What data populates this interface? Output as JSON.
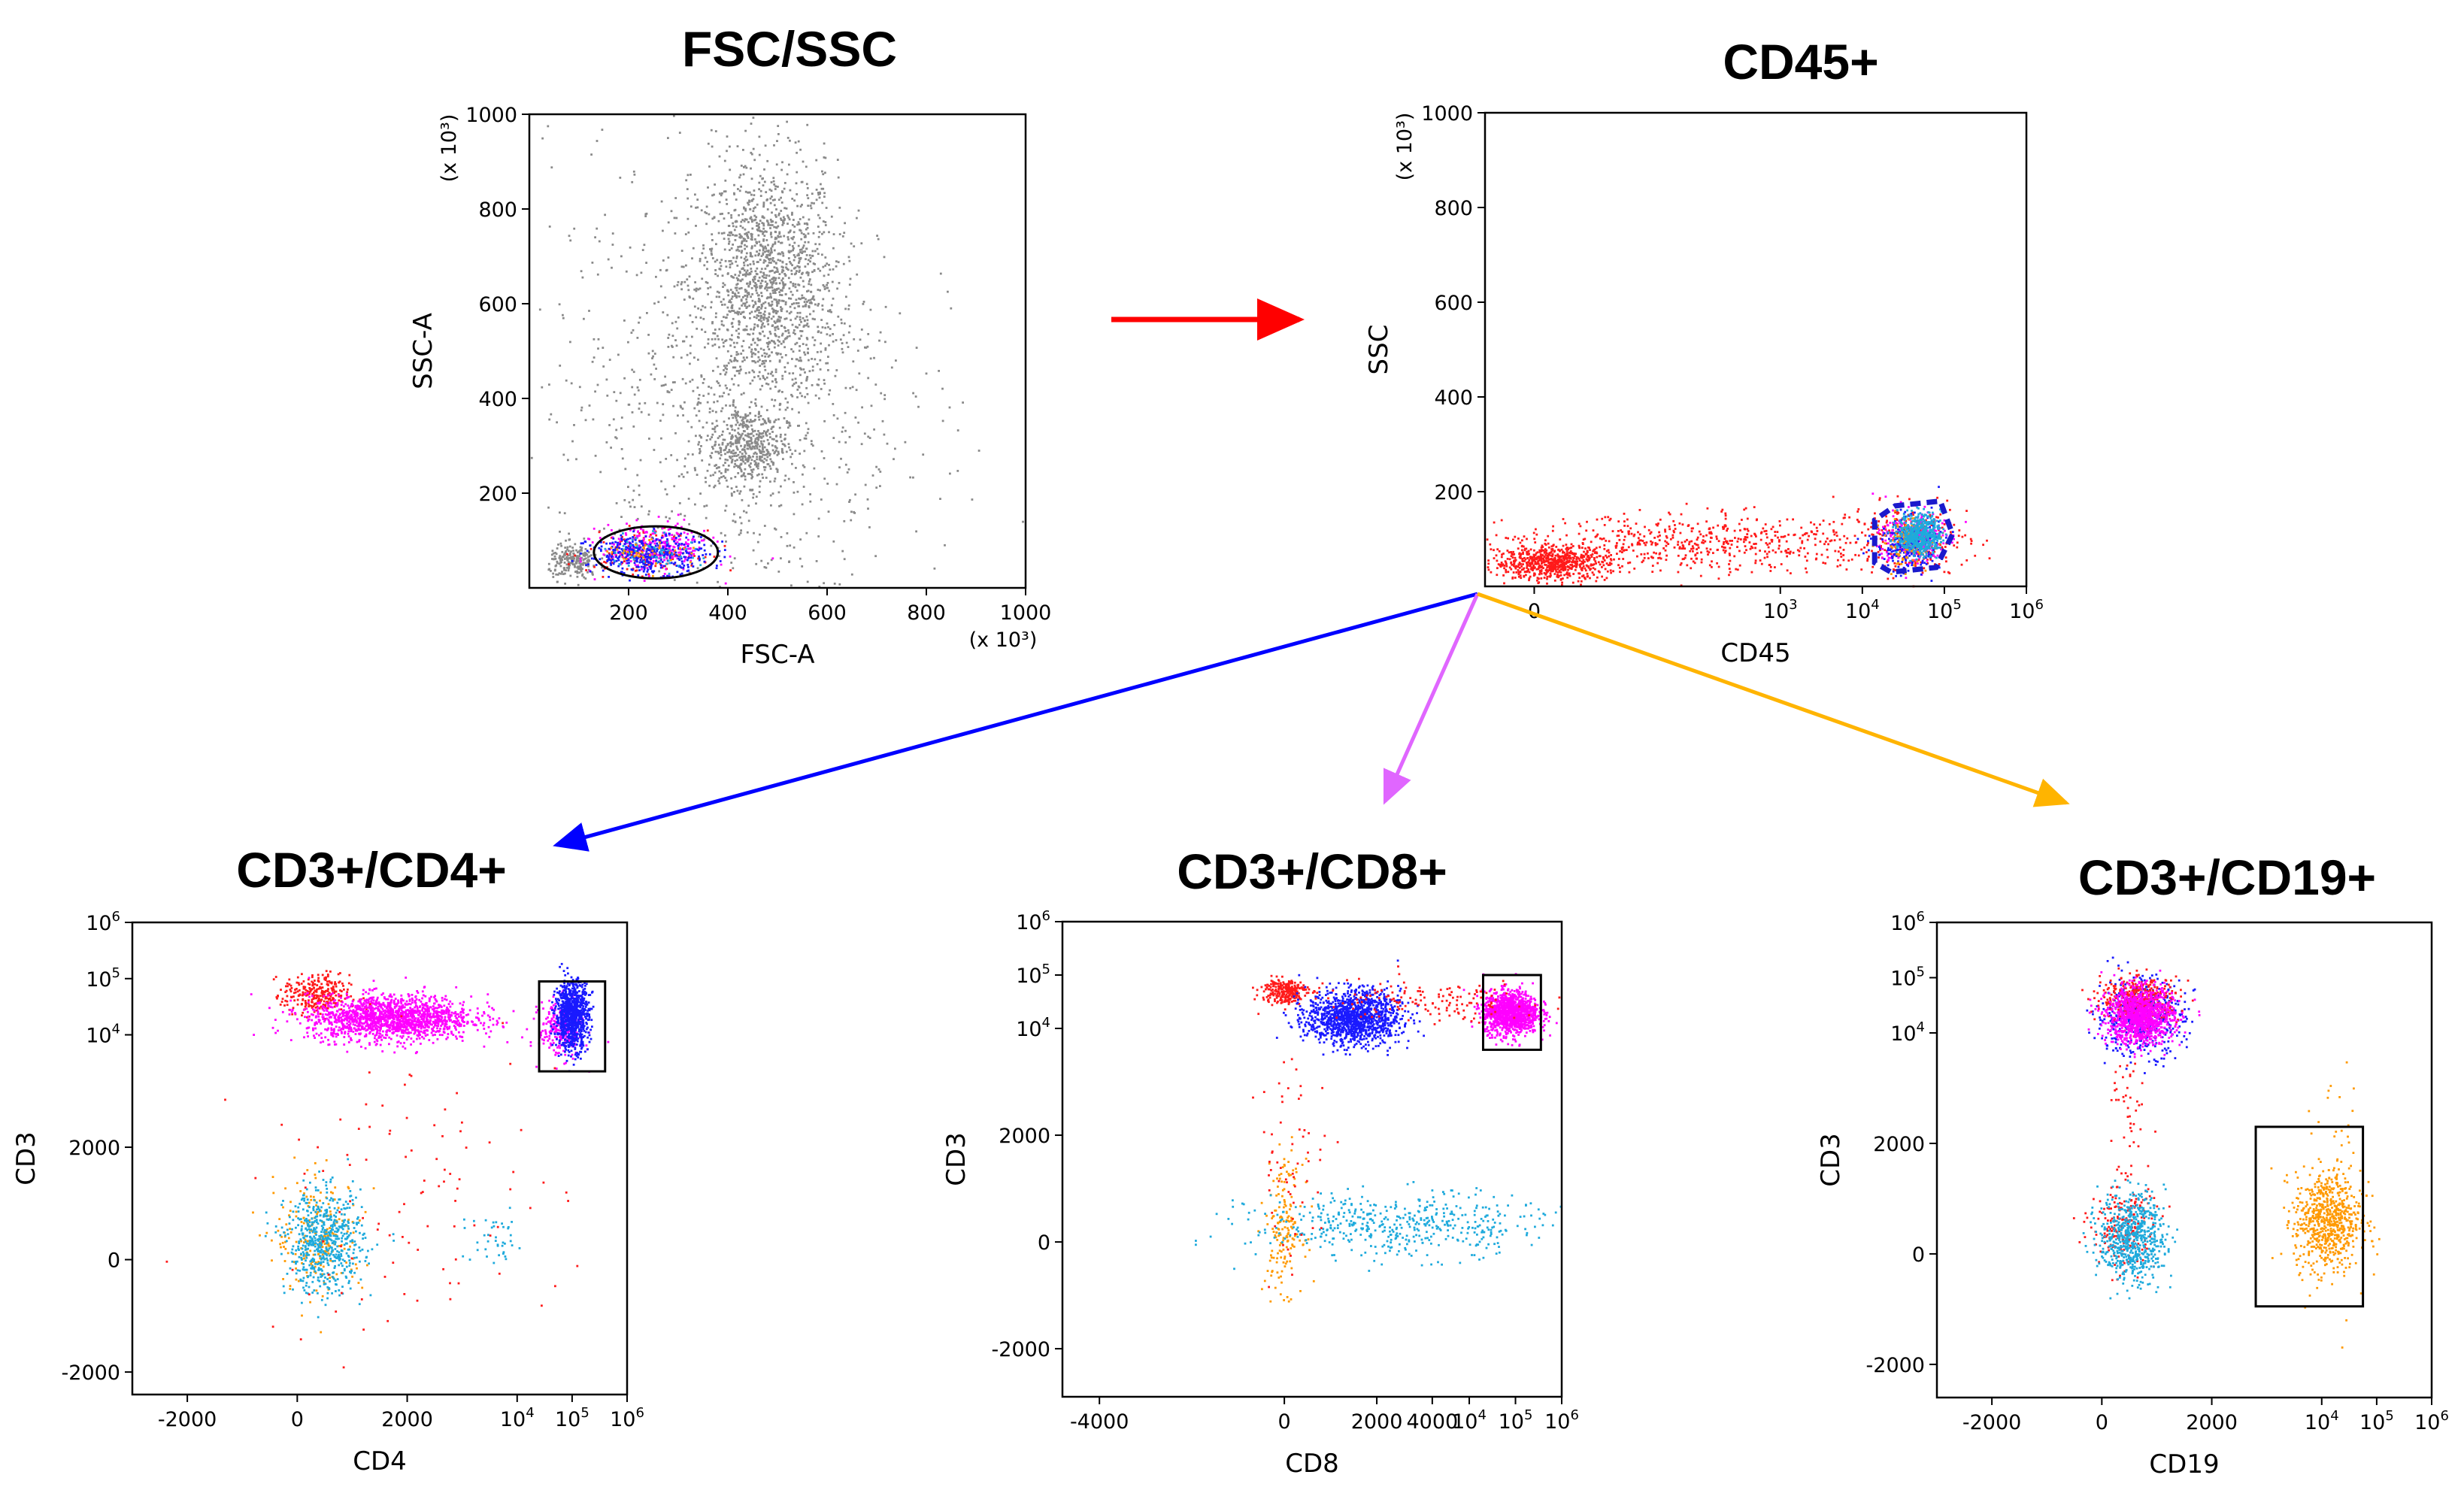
{
  "colors": {
    "gray": "#8a8a8a",
    "red": "#ff1a1a",
    "blue": "#1a1aff",
    "magenta": "#ff00ff",
    "cyan": "#1eaadc",
    "orange": "#ff9900",
    "arrow_red": "#ff0000",
    "arrow_blue": "#0000ff",
    "arrow_violet": "#e066ff",
    "arrow_gold": "#ffb400"
  },
  "chart_data": [
    {
      "id": "fsc-ssc",
      "type": "scatter",
      "title": "FSC/SSC",
      "xlabel": "FSC-A",
      "ylabel": "SSC-A",
      "x_unit": "(x 10³)",
      "y_unit": "(x 10³)",
      "xlim": [
        0,
        1000
      ],
      "ylim": [
        0,
        1000
      ],
      "x_ticks": [
        {
          "v": 200,
          "label": "200"
        },
        {
          "v": 400,
          "label": "400"
        },
        {
          "v": 600,
          "label": "600"
        },
        {
          "v": 800,
          "label": "800"
        },
        {
          "v": 1000,
          "label": "1000"
        }
      ],
      "y_ticks": [
        {
          "v": 200,
          "label": "200"
        },
        {
          "v": 400,
          "label": "400"
        },
        {
          "v": 600,
          "label": "600"
        },
        {
          "v": 800,
          "label": "800"
        },
        {
          "v": 1000,
          "label": "1000"
        }
      ],
      "gate": {
        "shape": "ellipse",
        "color": "#000000",
        "dashed": false,
        "cx": 255,
        "cy": 75,
        "rx": 125,
        "ry": 55
      },
      "clusters": [
        {
          "color": "gray",
          "n": 1400,
          "cx": 480,
          "cy": 640,
          "sx": 70,
          "sy": 130
        },
        {
          "color": "gray",
          "n": 450,
          "cx": 440,
          "cy": 300,
          "sx": 40,
          "sy": 40
        },
        {
          "color": "gray",
          "n": 900,
          "cx": 400,
          "cy": 400,
          "sx": 180,
          "sy": 260
        },
        {
          "color": "gray",
          "n": 220,
          "cx": 90,
          "cy": 55,
          "sx": 25,
          "sy": 18
        },
        {
          "color": "red",
          "n": 160,
          "cx": 230,
          "cy": 75,
          "sx": 55,
          "sy": 22
        },
        {
          "color": "magenta",
          "n": 280,
          "cx": 255,
          "cy": 85,
          "sx": 55,
          "sy": 25
        },
        {
          "color": "blue",
          "n": 380,
          "cx": 240,
          "cy": 70,
          "sx": 60,
          "sy": 20
        },
        {
          "color": "cyan",
          "n": 60,
          "cx": 250,
          "cy": 80,
          "sx": 45,
          "sy": 20
        },
        {
          "color": "orange",
          "n": 40,
          "cx": 240,
          "cy": 78,
          "sx": 45,
          "sy": 18
        }
      ]
    },
    {
      "id": "cd45",
      "type": "scatter",
      "title": "CD45+",
      "xlabel": "CD45",
      "ylabel": "SSC",
      "y_unit": "(x 10³)",
      "xlim": [
        -0.6,
        6
      ],
      "ylim": [
        0,
        1000
      ],
      "x_ticks": [
        {
          "v": 0,
          "label": "0"
        },
        {
          "v": 3,
          "label": "10",
          "sup": "3"
        },
        {
          "v": 4,
          "label": "10",
          "sup": "4"
        },
        {
          "v": 5,
          "label": "10",
          "sup": "5"
        },
        {
          "v": 6,
          "label": "10",
          "sup": "6"
        }
      ],
      "y_ticks": [
        {
          "v": 200,
          "label": "200"
        },
        {
          "v": 400,
          "label": "400"
        },
        {
          "v": 600,
          "label": "600"
        },
        {
          "v": 800,
          "label": "800"
        },
        {
          "v": 1000,
          "label": "1000"
        }
      ],
      "gate": {
        "shape": "polygon",
        "color": "#1a1acc",
        "dashed": true,
        "points": [
          [
            4.15,
            50
          ],
          [
            4.15,
            140
          ],
          [
            4.4,
            170
          ],
          [
            4.95,
            180
          ],
          [
            5.1,
            110
          ],
          [
            4.9,
            40
          ],
          [
            4.35,
            30
          ]
        ]
      },
      "clusters": [
        {
          "color": "red",
          "n": 700,
          "cx": 0.2,
          "cy": 50,
          "sx": 0.35,
          "sy": 18
        },
        {
          "color": "red",
          "n": 600,
          "cx": 2.2,
          "cy": 90,
          "sx": 1.2,
          "sy": 30
        },
        {
          "color": "red",
          "n": 250,
          "cx": 4.6,
          "cy": 100,
          "sx": 0.35,
          "sy": 35
        },
        {
          "color": "magenta",
          "n": 250,
          "cx": 4.6,
          "cy": 100,
          "sx": 0.2,
          "sy": 30
        },
        {
          "color": "blue",
          "n": 250,
          "cx": 4.55,
          "cy": 90,
          "sx": 0.2,
          "sy": 28
        },
        {
          "color": "orange",
          "n": 120,
          "cx": 4.55,
          "cy": 95,
          "sx": 0.15,
          "sy": 25
        },
        {
          "color": "cyan",
          "n": 500,
          "cx": 4.7,
          "cy": 110,
          "sx": 0.13,
          "sy": 22
        }
      ]
    },
    {
      "id": "cd3-cd4",
      "type": "scatter",
      "title": "CD3+/CD4+",
      "xlabel": "CD4",
      "ylabel": "CD3",
      "xlim": [
        -3,
        6
      ],
      "ylim": [
        -2.4,
        6
      ],
      "x_ticks": [
        {
          "v": -2,
          "label": "-2000"
        },
        {
          "v": 0,
          "label": "0"
        },
        {
          "v": 2,
          "label": "2000"
        },
        {
          "v": 4,
          "label": "10",
          "sup": "4"
        },
        {
          "v": 5,
          "label": "10",
          "sup": "5"
        },
        {
          "v": 6,
          "label": "10",
          "sup": "6"
        }
      ],
      "y_ticks": [
        {
          "v": -2,
          "label": "-2000"
        },
        {
          "v": 0,
          "label": "0"
        },
        {
          "v": 2,
          "label": "2000"
        },
        {
          "v": 4,
          "label": "10",
          "sup": "4"
        },
        {
          "v": 5,
          "label": "10",
          "sup": "5"
        },
        {
          "v": 6,
          "label": "10",
          "sup": "6"
        }
      ],
      "gate": {
        "shape": "rect",
        "color": "#000000",
        "dashed": false,
        "x0": 4.4,
        "x1": 5.6,
        "y0": 3.35,
        "y1": 4.95
      },
      "clusters": [
        {
          "color": "red",
          "n": 300,
          "cx": 0.35,
          "cy": 4.7,
          "sx": 0.3,
          "sy": 0.18
        },
        {
          "color": "magenta",
          "n": 1600,
          "cx": 1.7,
          "cy": 4.3,
          "sx": 0.75,
          "sy": 0.2
        },
        {
          "color": "magenta",
          "n": 250,
          "cx": 4.8,
          "cy": 4.1,
          "sx": 0.2,
          "sy": 0.25
        },
        {
          "color": "blue",
          "n": 900,
          "cx": 5.0,
          "cy": 4.35,
          "sx": 0.15,
          "sy": 0.3
        },
        {
          "color": "orange",
          "n": 220,
          "cx": 0.4,
          "cy": 0.4,
          "sx": 0.4,
          "sy": 0.5
        },
        {
          "color": "cyan",
          "n": 600,
          "cx": 0.5,
          "cy": 0.3,
          "sx": 0.35,
          "sy": 0.45
        },
        {
          "color": "cyan",
          "n": 40,
          "cx": 3.6,
          "cy": 0.3,
          "sx": 0.3,
          "sy": 0.25
        },
        {
          "color": "red",
          "n": 100,
          "cx": 2.0,
          "cy": 1.2,
          "sx": 1.4,
          "sy": 1.3
        }
      ]
    },
    {
      "id": "cd3-cd8",
      "type": "scatter",
      "title": "CD3+/CD8+",
      "xlabel": "CD8",
      "ylabel": "CD3",
      "xlim": [
        -4.8,
        6
      ],
      "ylim": [
        -2.9,
        6
      ],
      "x_ticks": [
        {
          "v": -4,
          "label": "-4000"
        },
        {
          "v": 0,
          "label": "0"
        },
        {
          "v": 2,
          "label": "2000"
        },
        {
          "v": 3.2,
          "label": "4000"
        },
        {
          "v": 4,
          "label": "10",
          "sup": "4"
        },
        {
          "v": 5,
          "label": "10",
          "sup": "5"
        },
        {
          "v": 6,
          "label": "10",
          "sup": "6"
        }
      ],
      "y_ticks": [
        {
          "v": -2,
          "label": "-2000"
        },
        {
          "v": 0,
          "label": "0"
        },
        {
          "v": 2,
          "label": "2000"
        },
        {
          "v": 4,
          "label": "10",
          "sup": "4"
        },
        {
          "v": 5,
          "label": "10",
          "sup": "5"
        },
        {
          "v": 6,
          "label": "10",
          "sup": "6"
        }
      ],
      "gate": {
        "shape": "rect",
        "color": "#000000",
        "dashed": false,
        "x0": 4.3,
        "x1": 5.55,
        "y0": 3.6,
        "y1": 5.0
      },
      "clusters": [
        {
          "color": "red",
          "n": 250,
          "cx": 0.0,
          "cy": 4.7,
          "sx": 0.25,
          "sy": 0.12
        },
        {
          "color": "blue",
          "n": 1300,
          "cx": 1.5,
          "cy": 4.2,
          "sx": 0.5,
          "sy": 0.25
        },
        {
          "color": "magenta",
          "n": 1200,
          "cx": 4.9,
          "cy": 4.3,
          "sx": 0.3,
          "sy": 0.2
        },
        {
          "color": "red",
          "n": 150,
          "cx": 3.0,
          "cy": 4.5,
          "sx": 1.3,
          "sy": 0.2
        },
        {
          "color": "orange",
          "n": 170,
          "cx": 0.0,
          "cy": 0.3,
          "sx": 0.2,
          "sy": 0.6
        },
        {
          "color": "cyan",
          "n": 500,
          "cx": 2.5,
          "cy": 0.3,
          "sx": 1.6,
          "sy": 0.3
        },
        {
          "color": "red",
          "n": 60,
          "cx": 0.2,
          "cy": 1.5,
          "sx": 0.4,
          "sy": 1.0
        }
      ]
    },
    {
      "id": "cd3-cd19",
      "type": "scatter",
      "title": "CD3+/CD19+",
      "xlabel": "CD19",
      "ylabel": "CD3",
      "xlim": [
        -3,
        6
      ],
      "ylim": [
        -2.6,
        6
      ],
      "x_ticks": [
        {
          "v": -2,
          "label": "-2000"
        },
        {
          "v": 0,
          "label": "0"
        },
        {
          "v": 2,
          "label": "2000"
        },
        {
          "v": 4,
          "label": "10",
          "sup": "4"
        },
        {
          "v": 5,
          "label": "10",
          "sup": "5"
        },
        {
          "v": 6,
          "label": "10",
          "sup": "6"
        }
      ],
      "y_ticks": [
        {
          "v": -2,
          "label": "-2000"
        },
        {
          "v": 0,
          "label": "0"
        },
        {
          "v": 2,
          "label": "2000"
        },
        {
          "v": 4,
          "label": "10",
          "sup": "4"
        },
        {
          "v": 5,
          "label": "10",
          "sup": "5"
        },
        {
          "v": 6,
          "label": "10",
          "sup": "6"
        }
      ],
      "gate": {
        "shape": "rect",
        "color": "#000000",
        "dashed": false,
        "x0": 2.8,
        "x1": 4.75,
        "y0": -0.95,
        "y1": 2.3
      },
      "clusters": [
        {
          "color": "blue",
          "n": 500,
          "cx": 0.7,
          "cy": 4.3,
          "sx": 0.4,
          "sy": 0.35
        },
        {
          "color": "red",
          "n": 400,
          "cx": 0.7,
          "cy": 4.6,
          "sx": 0.35,
          "sy": 0.2
        },
        {
          "color": "magenta",
          "n": 1100,
          "cx": 0.7,
          "cy": 4.3,
          "sx": 0.3,
          "sy": 0.25
        },
        {
          "color": "red",
          "n": 200,
          "cx": 0.4,
          "cy": 0.5,
          "sx": 0.3,
          "sy": 0.4
        },
        {
          "color": "cyan",
          "n": 650,
          "cx": 0.55,
          "cy": 0.3,
          "sx": 0.3,
          "sy": 0.4
        },
        {
          "color": "red",
          "n": 40,
          "cx": 0.5,
          "cy": 2.5,
          "sx": 0.15,
          "sy": 0.5
        },
        {
          "color": "orange",
          "n": 650,
          "cx": 4.1,
          "cy": 0.6,
          "sx": 0.3,
          "sy": 0.45
        },
        {
          "color": "orange",
          "n": 60,
          "cx": 4.3,
          "cy": 1.0,
          "sx": 0.3,
          "sy": 1.2
        }
      ]
    }
  ],
  "arrows": [
    {
      "id": "arrow-fsc-to-cd45",
      "color": "arrow_red"
    },
    {
      "id": "arrow-cd45-to-cd4",
      "color": "arrow_blue"
    },
    {
      "id": "arrow-cd45-to-cd8",
      "color": "arrow_violet"
    },
    {
      "id": "arrow-cd45-to-cd19",
      "color": "arrow_gold"
    }
  ]
}
